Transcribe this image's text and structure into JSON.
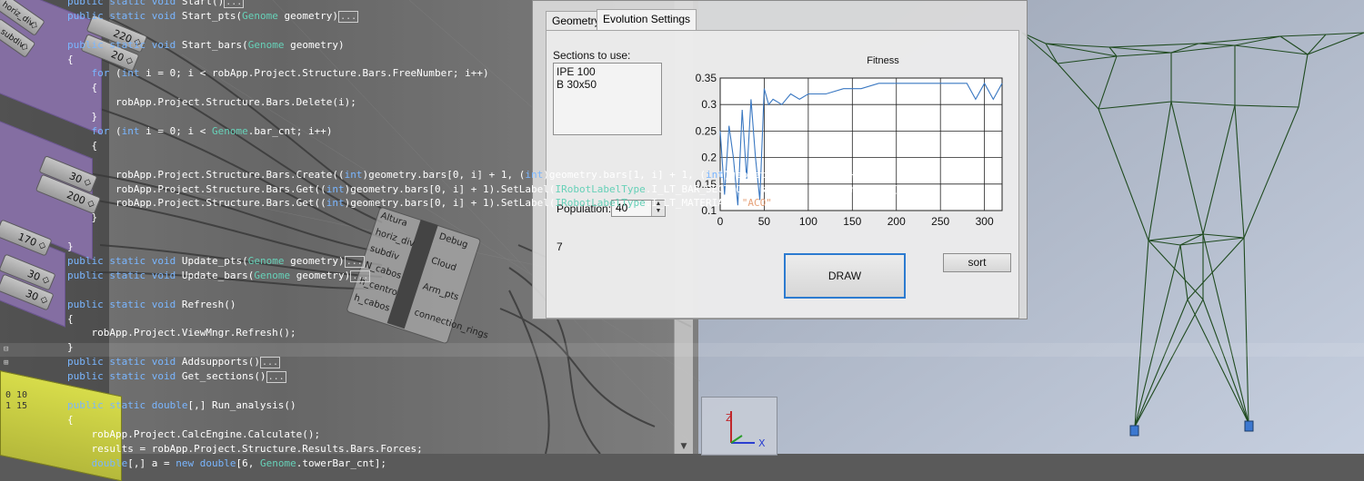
{
  "code_editor": {
    "lines": [
      [
        [
          "kw",
          "public static void "
        ],
        [
          "p",
          "Start()"
        ],
        [
          "box",
          "..."
        ]
      ],
      [
        [
          "kw",
          "public static void "
        ],
        [
          "p",
          "Start_pts("
        ],
        [
          "ty",
          "Genome"
        ],
        [
          "p",
          " geometry)"
        ],
        [
          "box",
          "..."
        ]
      ],
      [
        [
          "p",
          ""
        ]
      ],
      [
        [
          "kw",
          "public static void "
        ],
        [
          "p",
          "Start_bars("
        ],
        [
          "ty",
          "Genome"
        ],
        [
          "p",
          " geometry)"
        ]
      ],
      [
        [
          "p",
          "{"
        ]
      ],
      [
        [
          "p",
          "    "
        ],
        [
          "kw",
          "for"
        ],
        [
          "p",
          " ("
        ],
        [
          "kw",
          "int"
        ],
        [
          "p",
          " i = 0; i < robApp.Project.Structure.Bars.FreeNumber; i++)"
        ]
      ],
      [
        [
          "p",
          "    {"
        ]
      ],
      [
        [
          "p",
          "        robApp.Project.Structure.Bars.Delete(i);"
        ]
      ],
      [
        [
          "p",
          "    }"
        ]
      ],
      [
        [
          "p",
          "    "
        ],
        [
          "kw",
          "for"
        ],
        [
          "p",
          " ("
        ],
        [
          "kw",
          "int"
        ],
        [
          "p",
          " i = 0; i < "
        ],
        [
          "ty",
          "Genome"
        ],
        [
          "p",
          ".bar_cnt; i++)"
        ]
      ],
      [
        [
          "p",
          "    {"
        ]
      ],
      [
        [
          "p",
          ""
        ]
      ],
      [
        [
          "p",
          "        robApp.Project.Structure.Bars.Create(("
        ],
        [
          "kw",
          "int"
        ],
        [
          "p",
          ")geometry.bars[0, i] + 1, ("
        ],
        [
          "kw",
          "int"
        ],
        [
          "p",
          ")geometry.bars[1, i] + 1, ("
        ],
        [
          "kw",
          "int"
        ],
        [
          "p",
          ")geometry.bars[2, i] + 1);"
        ]
      ],
      [
        [
          "p",
          "        robApp.Project.Structure.Bars.Get(("
        ],
        [
          "kw",
          "int"
        ],
        [
          "p",
          ")geometry.bars[0, i] + 1).SetLabel("
        ],
        [
          "ty",
          "IRobotLabelType"
        ],
        [
          "p",
          ".I_LT_BAR_SECTION, sec_prop.section_names[0]);"
        ]
      ],
      [
        [
          "p",
          "        robApp.Project.Structure.Bars.Get(("
        ],
        [
          "kw",
          "int"
        ],
        [
          "p",
          ")geometry.bars[0, i] + 1).SetLabel("
        ],
        [
          "ty",
          "IRobotLabelType"
        ],
        [
          "p",
          ".I_LT_MATERIAL, "
        ],
        [
          "st",
          "\"ACO\""
        ],
        [
          "p",
          ");"
        ]
      ],
      [
        [
          "p",
          "    }"
        ]
      ],
      [
        [
          "p",
          ""
        ]
      ],
      [
        [
          "p",
          "}"
        ]
      ],
      [
        [
          "kw",
          "public static void "
        ],
        [
          "p",
          "Update_pts("
        ],
        [
          "ty",
          "Genome"
        ],
        [
          "p",
          " geometry)"
        ],
        [
          "box",
          "..."
        ]
      ],
      [
        [
          "kw",
          "public static void "
        ],
        [
          "p",
          "Update_bars("
        ],
        [
          "ty",
          "Genome"
        ],
        [
          "p",
          " geometry)"
        ],
        [
          "box",
          "..."
        ]
      ],
      [
        [
          "p",
          ""
        ]
      ],
      [
        [
          "kw",
          "public static void "
        ],
        [
          "p",
          "Refresh()"
        ]
      ],
      [
        [
          "p",
          "{"
        ]
      ],
      [
        [
          "p",
          "    robApp.Project.ViewMngr.Refresh();"
        ]
      ],
      [
        [
          "p",
          "}"
        ]
      ],
      [
        [
          "kw",
          "public static void "
        ],
        [
          "p",
          "Addsupports()"
        ],
        [
          "box",
          "..."
        ]
      ],
      [
        [
          "kw",
          "public static void "
        ],
        [
          "p",
          "Get_sections()"
        ],
        [
          "box",
          "..."
        ]
      ],
      [
        [
          "p",
          ""
        ]
      ],
      [
        [
          "kw",
          "public static double"
        ],
        [
          "p",
          "[,] Run_analysis()"
        ]
      ],
      [
        [
          "p",
          "{"
        ]
      ],
      [
        [
          "p",
          "    robApp.Project.CalcEngine.Calculate();"
        ]
      ],
      [
        [
          "p",
          "    results = robApp.Project.Structure.Results.Bars.Forces;"
        ]
      ],
      [
        [
          "p",
          "    "
        ],
        [
          "kw",
          "double"
        ],
        [
          "p",
          "[,] a = "
        ],
        [
          "kw",
          "new double"
        ],
        [
          "p",
          "[6, "
        ],
        [
          "ty",
          "Genome"
        ],
        [
          "p",
          ".towerBar_cnt];"
        ]
      ]
    ]
  },
  "gh_sliders": [
    {
      "label": "220"
    },
    {
      "label": "20"
    },
    {
      "label": "30"
    },
    {
      "label": "200"
    },
    {
      "label": "170"
    },
    {
      "label": "30"
    },
    {
      "label": "30"
    }
  ],
  "gh_side_labels": {
    "a": "horiz_div",
    "b": "subdiv"
  },
  "gh_component": {
    "inputs": [
      "Altura",
      "horiz_div",
      "subdiv",
      "N_cabos",
      "h_centro",
      "h_cabos"
    ],
    "outputs": [
      "Debug",
      "Cloud",
      "Arm_pts",
      "connection_rings"
    ]
  },
  "yellow_panel": {
    "line1": "0 10",
    "line2": "1 15"
  },
  "dialog": {
    "tabs": [
      "Geometry",
      "Evolution Settings"
    ],
    "active_tab": "Evolution Settings",
    "sections_label": "Sections to use:",
    "sections": [
      "IPE 100",
      "B 30x50"
    ],
    "population_label": "Population:",
    "population_value": "40",
    "status_value": "7",
    "draw_button": "DRAW",
    "sort_button": "sort"
  },
  "chart_data": {
    "type": "line",
    "title": "Fitness",
    "xlabel": "",
    "ylabel": "",
    "xlim": [
      0,
      320
    ],
    "ylim": [
      0.1,
      0.35
    ],
    "xticks": [
      0,
      50,
      100,
      150,
      200,
      250,
      300
    ],
    "yticks": [
      0.1,
      0.15,
      0.2,
      0.25,
      0.3,
      0.35
    ],
    "ytick_labels": [
      "0.1",
      "0.15",
      "0.2",
      "0.25",
      "0.3",
      "0.35"
    ],
    "grid": true,
    "series": [
      {
        "name": "",
        "color": "#3a78c2",
        "x": [
          0,
          5,
          10,
          15,
          20,
          25,
          30,
          35,
          40,
          45,
          50,
          55,
          60,
          70,
          80,
          90,
          100,
          120,
          140,
          160,
          180,
          200,
          220,
          240,
          260,
          280,
          290,
          300,
          310,
          320
        ],
        "y": [
          0.25,
          0.13,
          0.26,
          0.2,
          0.11,
          0.29,
          0.16,
          0.31,
          0.2,
          0.12,
          0.33,
          0.3,
          0.31,
          0.3,
          0.32,
          0.31,
          0.32,
          0.32,
          0.33,
          0.33,
          0.34,
          0.34,
          0.34,
          0.34,
          0.34,
          0.34,
          0.31,
          0.34,
          0.31,
          0.34
        ]
      }
    ]
  },
  "viewport": {
    "background": "#b8c3d6",
    "tower_color": "#1f4a1f",
    "support_color": "#3c78d0",
    "axis_labels": {
      "z": "Z",
      "x": "X"
    }
  }
}
